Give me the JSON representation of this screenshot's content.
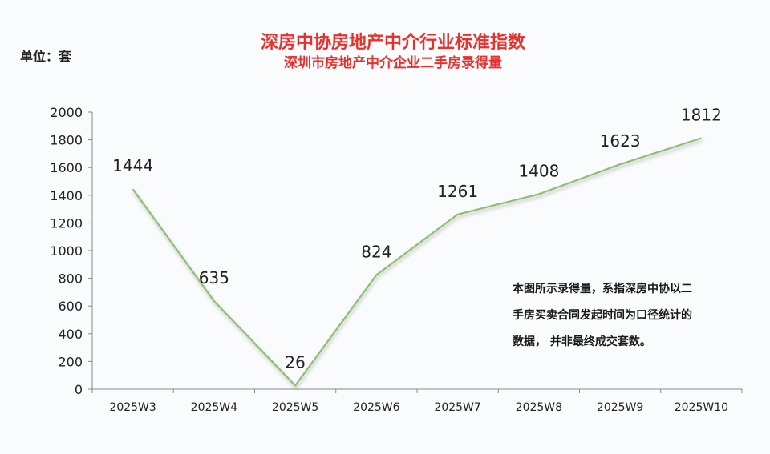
{
  "header": {
    "title": "深房中协房地产中介行业标准指数",
    "subtitle": "深圳市房地产中介企业二手房录得量",
    "unit": "单位：套"
  },
  "note": {
    "lines": [
      "本图所示录得量，系指深房中协以二",
      "手房买卖合同发起时间为口径统计的",
      "数据，  并非最终成交套数。"
    ]
  },
  "colors": {
    "title": "#e8312c",
    "line": "#8cbf6e",
    "axis": "#888888"
  },
  "chart_data": {
    "type": "line",
    "title": "深房中协房地产中介行业标准指数",
    "subtitle": "深圳市房地产中介企业二手房录得量",
    "ylabel": "单位：套",
    "xlabel": "",
    "categories": [
      "2025W3",
      "2025W4",
      "2025W5",
      "2025W6",
      "2025W7",
      "2025W8",
      "2025W9",
      "2025W10"
    ],
    "values": [
      1444,
      635,
      26,
      824,
      1261,
      1408,
      1623,
      1812
    ],
    "ylim": [
      0,
      2000
    ],
    "yticks": [
      0,
      200,
      400,
      600,
      800,
      1000,
      1200,
      1400,
      1600,
      1800,
      2000
    ],
    "grid": false,
    "legend": "none"
  }
}
